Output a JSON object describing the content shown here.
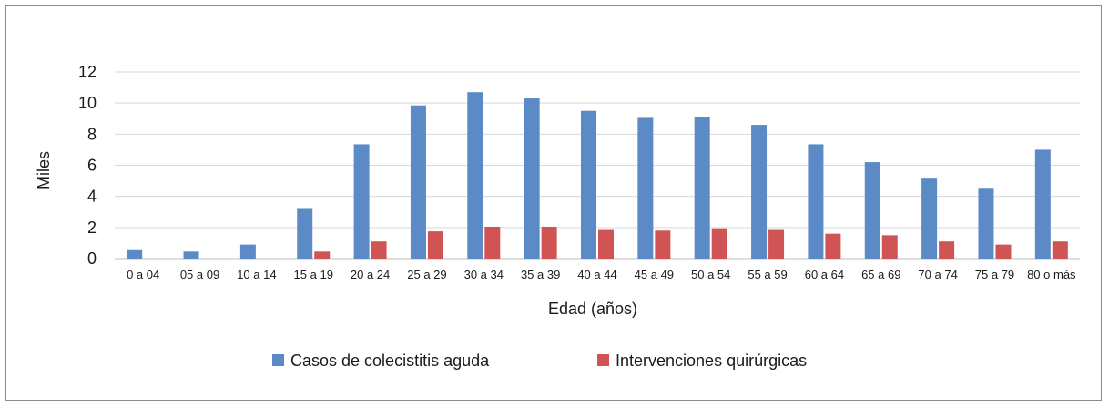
{
  "chart_data": {
    "type": "bar",
    "xlabel": "Edad (años)",
    "ylabel": "Miles",
    "ylim": [
      0,
      12
    ],
    "yticks": [
      0,
      2,
      4,
      6,
      8,
      10,
      12
    ],
    "grid": true,
    "legend_position": "bottom",
    "categories": [
      "0 a 04",
      "05 a 09",
      "10 a 14",
      "15 a 19",
      "20 a 24",
      "25 a 29",
      "30 a 34",
      "35 a 39",
      "40 a 44",
      "45 a 49",
      "50 a 54",
      "55 a 59",
      "60 a 64",
      "65 a 69",
      "70 a 74",
      "75 a 79",
      "80 o más"
    ],
    "series": [
      {
        "name": "Casos de colecistitis aguda",
        "color": "#5b8ac6",
        "values": [
          0.6,
          0.45,
          0.9,
          3.25,
          7.35,
          9.85,
          10.7,
          10.3,
          9.5,
          9.05,
          9.1,
          8.6,
          7.35,
          6.2,
          5.2,
          4.55,
          7.0
        ]
      },
      {
        "name": "Intervenciones quirúrgicas",
        "color": "#d05454",
        "values": [
          0,
          0,
          0,
          0.45,
          1.1,
          1.75,
          2.05,
          2.05,
          1.9,
          1.8,
          1.95,
          1.9,
          1.6,
          1.5,
          1.1,
          0.9,
          1.1
        ]
      }
    ]
  }
}
